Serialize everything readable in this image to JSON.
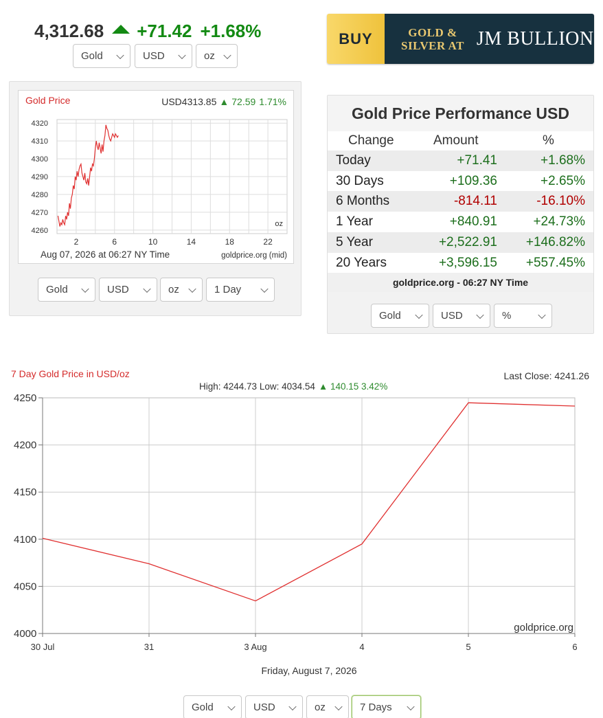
{
  "ticker": {
    "price": "4,312.68",
    "change": "+71.42",
    "percent": "+1.68%"
  },
  "top_selects": {
    "metal": "Gold",
    "currency": "USD",
    "unit": "oz"
  },
  "ad": {
    "buy": "BUY",
    "gold_silver_line1": "GOLD &",
    "gold_silver_line2": "SILVER AT",
    "brand": "JM BULLION"
  },
  "mini_chart_selects": {
    "metal": "Gold",
    "currency": "USD",
    "unit": "oz",
    "range": "1 Day"
  },
  "performance": {
    "title": "Gold Price Performance USD",
    "headers": [
      "Change",
      "Amount",
      "%"
    ],
    "rows": [
      {
        "period": "Today",
        "amount": "+71.41",
        "percent": "+1.68%",
        "sign": "pos"
      },
      {
        "period": "30 Days",
        "amount": "+109.36",
        "percent": "+2.65%",
        "sign": "pos"
      },
      {
        "period": "6 Months",
        "amount": "-814.11",
        "percent": "-16.10%",
        "sign": "neg"
      },
      {
        "period": "1 Year",
        "amount": "+840.91",
        "percent": "+24.73%",
        "sign": "pos"
      },
      {
        "period": "5 Year",
        "amount": "+2,522.91",
        "percent": "+146.82%",
        "sign": "pos"
      },
      {
        "period": "20 Years",
        "amount": "+3,596.15",
        "percent": "+557.45%",
        "sign": "pos"
      }
    ],
    "footer": "goldprice.org - 06:27 NY Time",
    "selects": {
      "metal": "Gold",
      "currency": "USD",
      "mode": "%"
    }
  },
  "big_chart_selects": {
    "metal": "Gold",
    "currency": "USD",
    "unit": "oz",
    "range": "7 Days"
  },
  "colors": {
    "up": "#138a13",
    "down": "#b10000",
    "line": "#e03030",
    "title_red": "#d42a2a"
  },
  "chart_data": [
    {
      "type": "line",
      "title": "Gold Price",
      "header_price": "USD4313.85",
      "header_change": "72.59",
      "header_percent": "1.71%",
      "unit_label": "oz",
      "date_label": "Aug 07, 2026 at 06:27 NY Time",
      "source_label": "goldprice.org (mid)",
      "x_ticks": [
        2,
        6,
        10,
        14,
        18,
        22
      ],
      "xlim": [
        0,
        24
      ],
      "y_ticks": [
        4260,
        4270,
        4280,
        4290,
        4300,
        4310,
        4320
      ],
      "ylim": [
        4258,
        4322
      ],
      "grid": true,
      "series": [
        {
          "x": [
            0.1,
            0.2,
            0.3,
            0.4,
            0.5,
            0.6,
            0.7,
            0.8,
            0.9,
            1.0,
            1.1,
            1.2,
            1.3,
            1.4,
            1.5,
            1.6,
            1.7,
            1.8,
            1.9,
            2.0,
            2.1,
            2.2,
            2.3,
            2.4,
            2.5,
            2.6,
            2.7,
            2.8,
            2.9,
            3.0,
            3.1,
            3.2,
            3.3,
            3.4,
            3.5,
            3.6,
            3.7,
            3.8,
            3.9,
            4.0,
            4.1,
            4.2,
            4.3,
            4.4,
            4.5,
            4.6,
            4.7,
            4.8,
            4.9,
            5.0,
            5.1,
            5.2,
            5.3,
            5.4,
            5.5,
            5.6,
            5.7,
            5.8,
            5.9,
            6.0,
            6.1,
            6.2,
            6.3,
            6.4
          ],
          "y": [
            4268,
            4265,
            4262,
            4264,
            4263,
            4266,
            4264,
            4263,
            4268,
            4266,
            4270,
            4268,
            4275,
            4272,
            4278,
            4280,
            4285,
            4283,
            4290,
            4288,
            4293,
            4290,
            4294,
            4296,
            4297,
            4292,
            4290,
            4288,
            4292,
            4287,
            4286,
            4289,
            4285,
            4290,
            4295,
            4293,
            4297,
            4296,
            4300,
            4306,
            4310,
            4307,
            4305,
            4309,
            4306,
            4303,
            4308,
            4304,
            4310,
            4313,
            4319,
            4317,
            4316,
            4313,
            4311,
            4310,
            4312,
            4314,
            4313,
            4312,
            4314,
            4313,
            4312,
            4313
          ]
        }
      ]
    },
    {
      "type": "line",
      "title": "7 Day Gold Price in USD/oz",
      "stats": "High: 4244.73 Low: 4034.54",
      "stats_change": "▲ 140.15 3.42%",
      "last_close": "Last Close: 4241.26",
      "watermark": "goldprice.org",
      "xlabel": "Friday, August 7, 2026",
      "categories": [
        "30 Jul",
        "31",
        "3 Aug",
        "4",
        "5",
        "6"
      ],
      "y_ticks": [
        4000,
        4050,
        4100,
        4150,
        4200,
        4250
      ],
      "ylim": [
        4000,
        4250
      ],
      "grid": true,
      "series": [
        {
          "values": [
            4101,
            4074,
            4034.54,
            4095,
            4244.73,
            4241.26
          ]
        }
      ]
    }
  ]
}
